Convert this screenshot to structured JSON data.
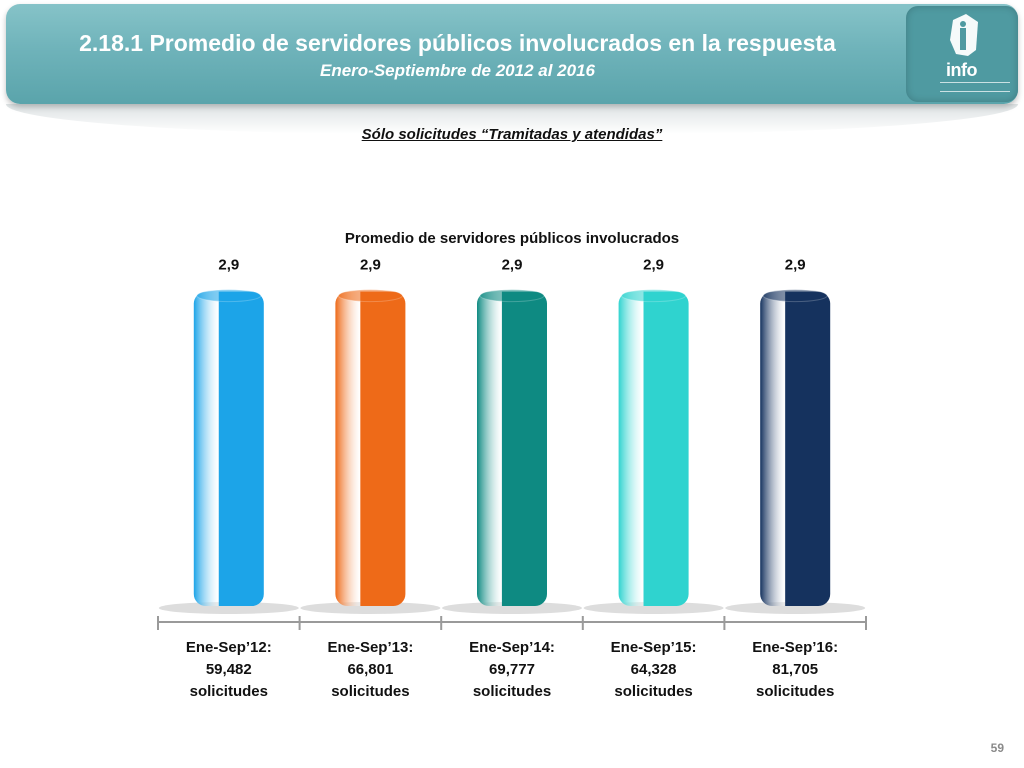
{
  "header": {
    "title": "2.18.1 Promedio de servidores públicos involucrados en la respuesta",
    "subtitle": "Enero-Septiembre de 2012 al 2016",
    "logo_text": "info"
  },
  "note": "Sólo solicitudes “Tramitadas y atendidas”",
  "page_number": "59",
  "colors": {
    "banner": "#6fb3ba",
    "bar1": "#1ca4e8",
    "bar2": "#ee6a18",
    "bar3": "#0e8a82",
    "bar4": "#2fd3cf",
    "bar5": "#15325e"
  },
  "chart_data": {
    "type": "bar",
    "title": "Promedio de servidores públicos involucrados",
    "categories": [
      [
        "Ene-Sep’12:",
        "59,482",
        "solicitudes"
      ],
      [
        "Ene-Sep’13:",
        "66,801",
        "solicitudes"
      ],
      [
        "Ene-Sep’14:",
        "69,777",
        "solicitudes"
      ],
      [
        "Ene-Sep’15:",
        "64,328",
        "solicitudes"
      ],
      [
        "Ene-Sep’16:",
        "81,705",
        "solicitudes"
      ]
    ],
    "values": [
      2.9,
      2.9,
      2.9,
      2.9,
      2.9
    ],
    "value_labels": [
      "2,9",
      "2,9",
      "2,9",
      "2,9",
      "2,9"
    ],
    "bar_colors": [
      "#1ca4e8",
      "#ee6a18",
      "#0e8a82",
      "#2fd3cf",
      "#15325e"
    ],
    "ylim": [
      0,
      3.1
    ],
    "grid": false,
    "legend": "none"
  }
}
